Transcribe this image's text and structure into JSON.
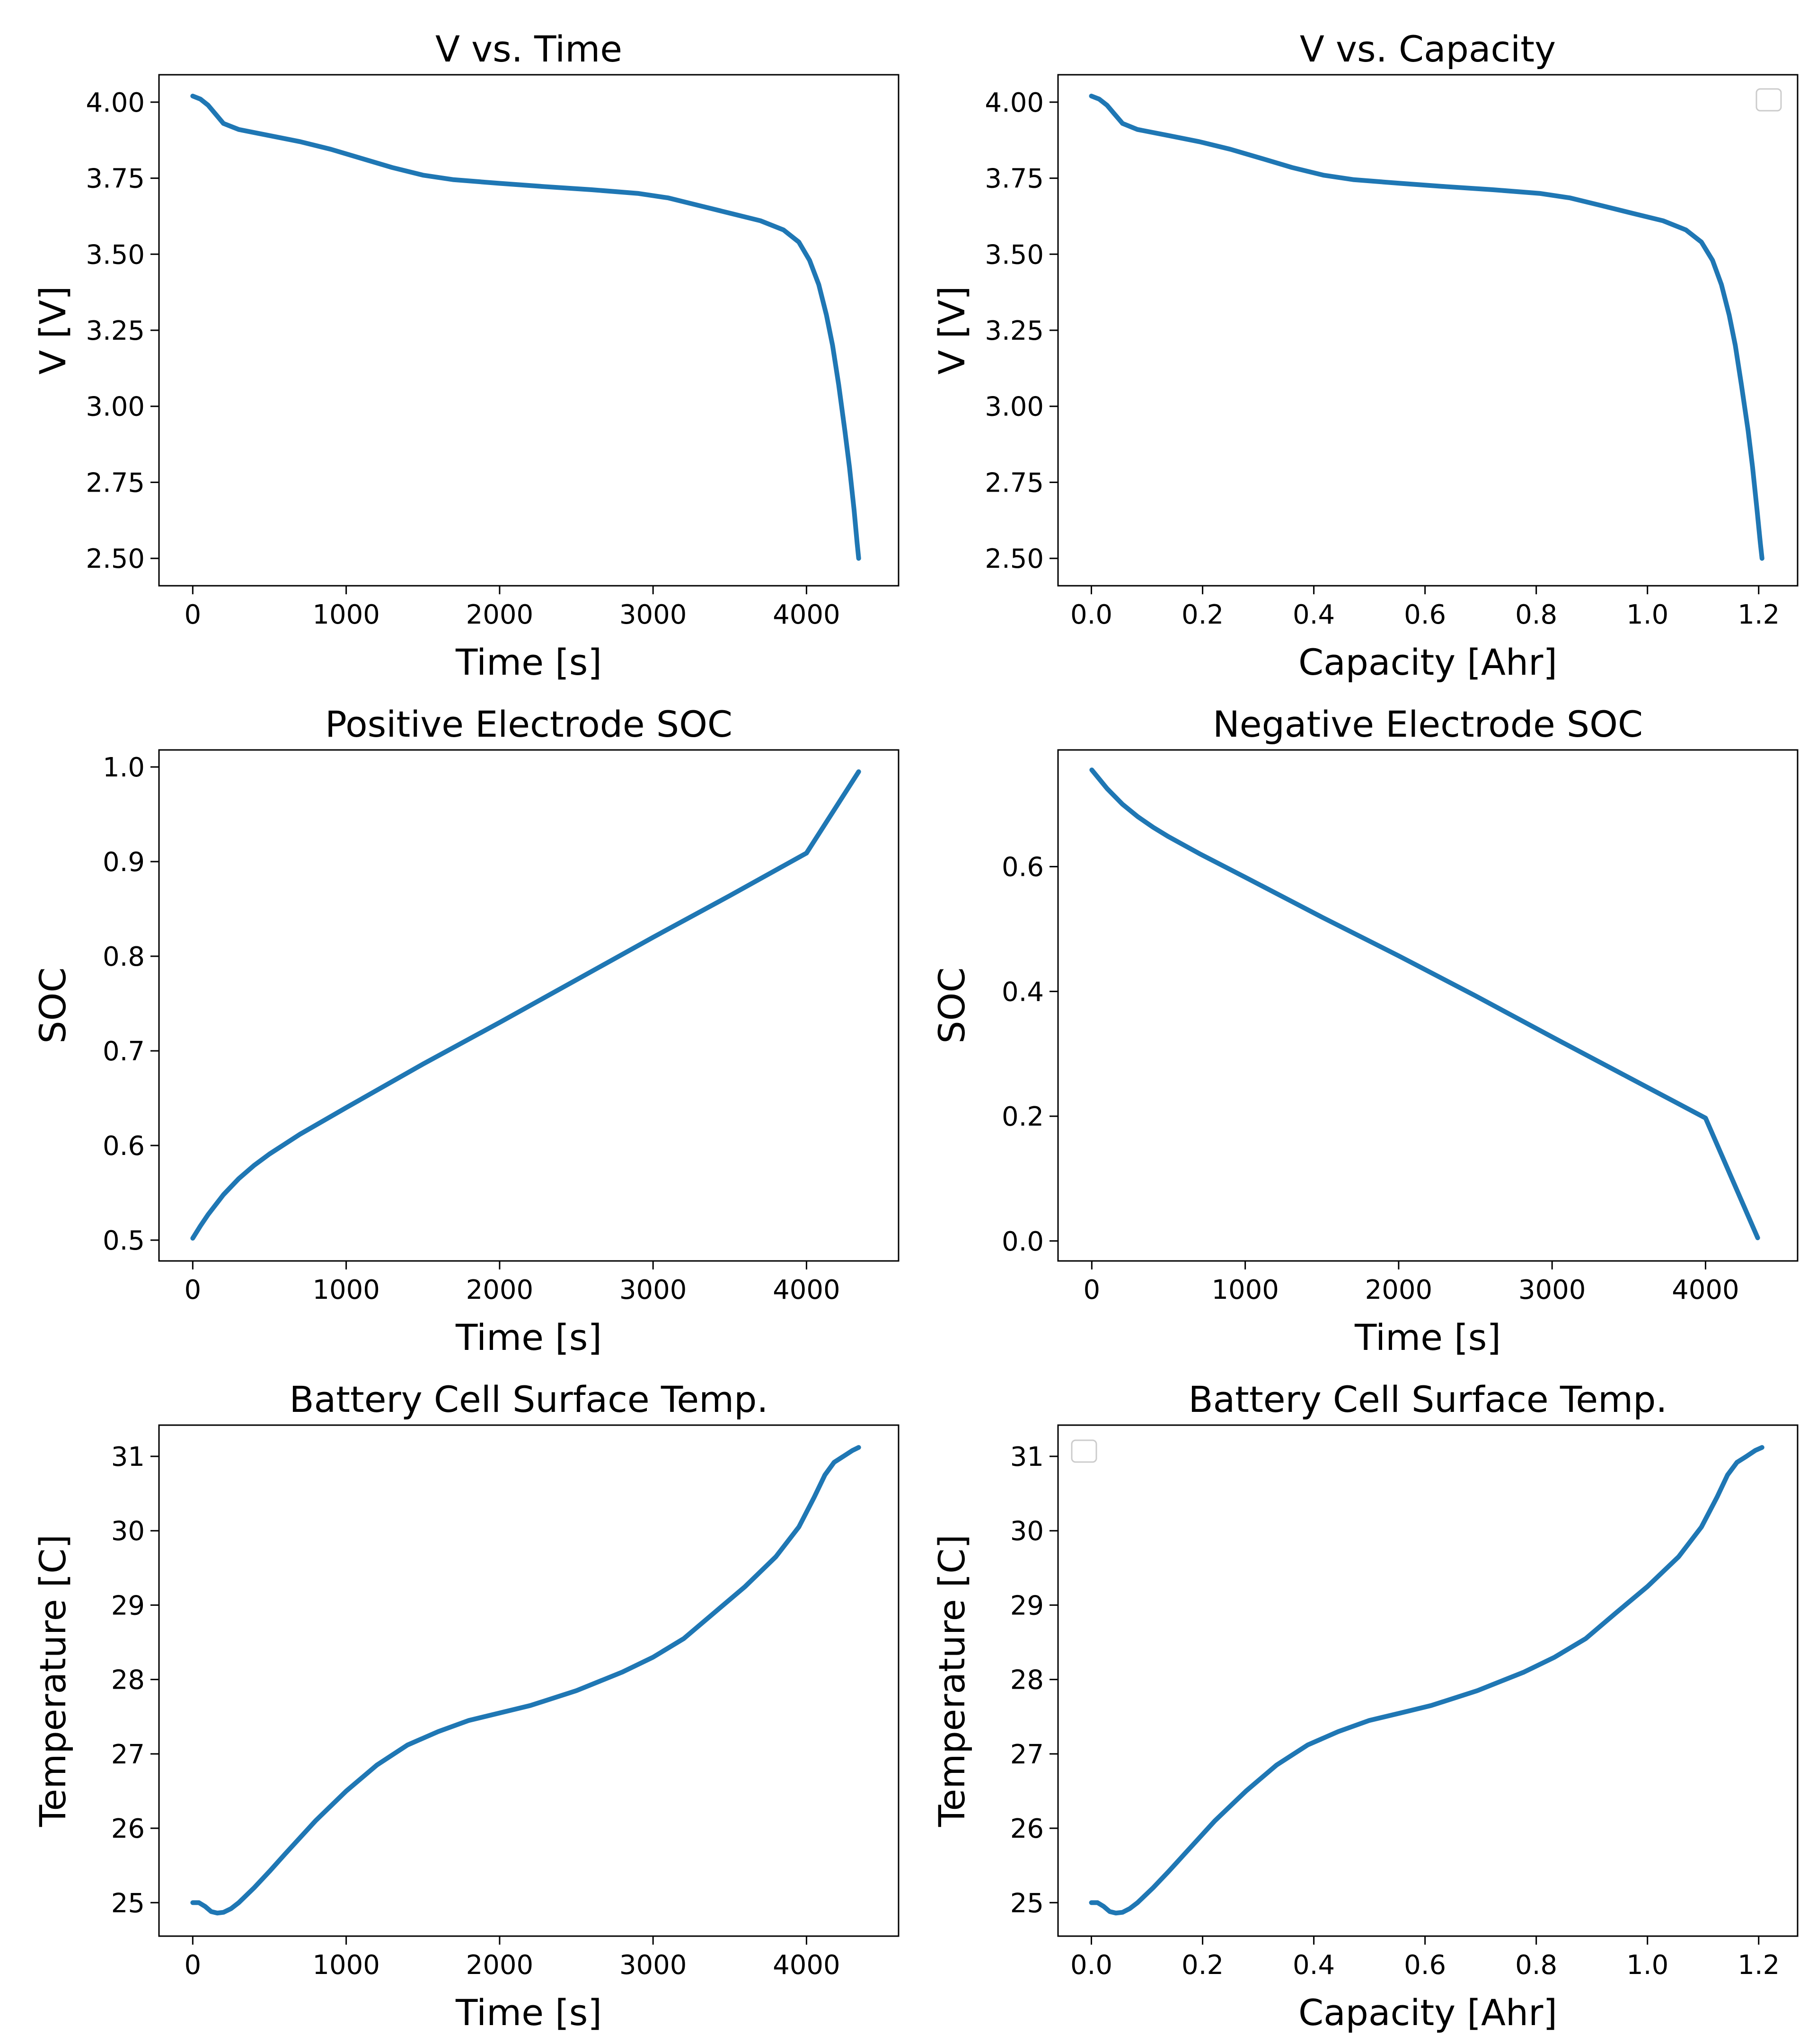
{
  "figure": {
    "line_color": "#1f77b4"
  },
  "chart_data": [
    {
      "id": "v-vs-time",
      "type": "line",
      "title": "V vs. Time",
      "xlabel": "Time [s]",
      "ylabel": "V [V]",
      "xlim": [
        -220,
        4600
      ],
      "ylim": [
        2.41,
        4.09
      ],
      "xticks": [
        0,
        1000,
        2000,
        3000,
        4000
      ],
      "xtick_labels": [
        "0",
        "1000",
        "2000",
        "3000",
        "4000"
      ],
      "yticks": [
        2.5,
        2.75,
        3.0,
        3.25,
        3.5,
        3.75,
        4.0
      ],
      "ytick_labels": [
        "2.50",
        "2.75",
        "3.00",
        "3.25",
        "3.50",
        "3.75",
        "4.00"
      ],
      "legend": "none",
      "grid": false,
      "series": [
        {
          "x": [
            0,
            50,
            100,
            150,
            200,
            300,
            500,
            700,
            900,
            1100,
            1300,
            1500,
            1700,
            2000,
            2300,
            2600,
            2900,
            3100,
            3300,
            3500,
            3700,
            3850,
            3950,
            4020,
            4080,
            4130,
            4170,
            4210,
            4250,
            4280,
            4310,
            4330,
            4340
          ],
          "y": [
            4.02,
            4.01,
            3.99,
            3.96,
            3.93,
            3.91,
            3.89,
            3.87,
            3.845,
            3.815,
            3.785,
            3.76,
            3.745,
            3.733,
            3.722,
            3.712,
            3.7,
            3.685,
            3.66,
            3.635,
            3.61,
            3.58,
            3.54,
            3.48,
            3.4,
            3.3,
            3.2,
            3.07,
            2.92,
            2.8,
            2.66,
            2.55,
            2.5
          ]
        }
      ]
    },
    {
      "id": "v-vs-capacity",
      "type": "line",
      "title": "V vs. Capacity",
      "xlabel": "Capacity [Ahr]",
      "ylabel": "V [V]",
      "xlim": [
        -0.06,
        1.27
      ],
      "ylim": [
        2.41,
        4.09
      ],
      "xticks": [
        0,
        0.2,
        0.4,
        0.6,
        0.8,
        1.0,
        1.2
      ],
      "xtick_labels": [
        "0.0",
        "0.2",
        "0.4",
        "0.6",
        "0.8",
        "1.0",
        "1.2"
      ],
      "yticks": [
        2.5,
        2.75,
        3.0,
        3.25,
        3.5,
        3.75,
        4.0
      ],
      "ytick_labels": [
        "2.50",
        "2.75",
        "3.00",
        "3.25",
        "3.50",
        "3.75",
        "4.00"
      ],
      "legend": "upper right (empty)",
      "grid": false,
      "series": [
        {
          "x": [
            0,
            0.014,
            0.028,
            0.042,
            0.056,
            0.083,
            0.139,
            0.194,
            0.25,
            0.306,
            0.361,
            0.417,
            0.472,
            0.556,
            0.639,
            0.722,
            0.806,
            0.861,
            0.917,
            0.972,
            1.028,
            1.069,
            1.097,
            1.117,
            1.133,
            1.147,
            1.158,
            1.169,
            1.181,
            1.189,
            1.197,
            1.203,
            1.206
          ],
          "y": [
            4.02,
            4.01,
            3.99,
            3.96,
            3.93,
            3.91,
            3.89,
            3.87,
            3.845,
            3.815,
            3.785,
            3.76,
            3.745,
            3.733,
            3.722,
            3.712,
            3.7,
            3.685,
            3.66,
            3.635,
            3.61,
            3.58,
            3.54,
            3.48,
            3.4,
            3.3,
            3.2,
            3.07,
            2.92,
            2.8,
            2.66,
            2.55,
            2.5
          ]
        }
      ]
    },
    {
      "id": "positive-electrode-soc",
      "type": "line",
      "title": "Positive Electrode SOC",
      "xlabel": "Time [s]",
      "ylabel": "SOC",
      "xlim": [
        -220,
        4600
      ],
      "ylim": [
        0.478,
        1.018
      ],
      "xticks": [
        0,
        1000,
        2000,
        3000,
        4000
      ],
      "xtick_labels": [
        "0",
        "1000",
        "2000",
        "3000",
        "4000"
      ],
      "yticks": [
        0.5,
        0.6,
        0.7,
        0.8,
        0.9,
        1.0
      ],
      "ytick_labels": [
        "0.5",
        "0.6",
        "0.7",
        "0.8",
        "0.9",
        "1.0"
      ],
      "legend": "none",
      "grid": false,
      "series": [
        {
          "x": [
            0,
            50,
            100,
            200,
            300,
            400,
            500,
            700,
            1000,
            1500,
            2000,
            2500,
            3000,
            3500,
            4000,
            4340
          ],
          "y": [
            0.502,
            0.515,
            0.527,
            0.548,
            0.565,
            0.579,
            0.591,
            0.612,
            0.64,
            0.686,
            0.73,
            0.775,
            0.82,
            0.864,
            0.909,
            0.995
          ]
        }
      ]
    },
    {
      "id": "negative-electrode-soc",
      "type": "line",
      "title": "Negative Electrode SOC",
      "xlabel": "Time [s]",
      "ylabel": "SOC",
      "xlim": [
        -220,
        4600
      ],
      "ylim": [
        -0.032,
        0.787
      ],
      "xticks": [
        0,
        1000,
        2000,
        3000,
        4000
      ],
      "xtick_labels": [
        "0",
        "1000",
        "2000",
        "3000",
        "4000"
      ],
      "yticks": [
        0.0,
        0.2,
        0.4,
        0.6
      ],
      "ytick_labels": [
        "0.0",
        "0.2",
        "0.4",
        "0.6"
      ],
      "legend": "none",
      "grid": false,
      "series": [
        {
          "x": [
            0,
            50,
            100,
            200,
            300,
            400,
            500,
            700,
            1000,
            1500,
            2000,
            2500,
            3000,
            3500,
            4000,
            4340
          ],
          "y": [
            0.755,
            0.74,
            0.725,
            0.7,
            0.68,
            0.663,
            0.648,
            0.621,
            0.583,
            0.519,
            0.457,
            0.393,
            0.327,
            0.262,
            0.197,
            0.005
          ]
        }
      ]
    },
    {
      "id": "surface-temp-vs-time",
      "type": "line",
      "title": "Battery Cell Surface Temp.",
      "xlabel": "Time [s]",
      "ylabel": "Temperature [C]",
      "xlim": [
        -220,
        4600
      ],
      "ylim": [
        24.55,
        31.42
      ],
      "xticks": [
        0,
        1000,
        2000,
        3000,
        4000
      ],
      "xtick_labels": [
        "0",
        "1000",
        "2000",
        "3000",
        "4000"
      ],
      "yticks": [
        25,
        26,
        27,
        28,
        29,
        30,
        31
      ],
      "ytick_labels": [
        "25",
        "26",
        "27",
        "28",
        "29",
        "30",
        "31"
      ],
      "legend": "none",
      "grid": false,
      "series": [
        {
          "x": [
            0,
            40,
            80,
            120,
            160,
            200,
            250,
            300,
            400,
            500,
            600,
            800,
            1000,
            1200,
            1400,
            1600,
            1800,
            2000,
            2200,
            2500,
            2800,
            3000,
            3200,
            3400,
            3600,
            3800,
            3950,
            4050,
            4120,
            4180,
            4240,
            4300,
            4340
          ],
          "y": [
            25.0,
            25.0,
            24.95,
            24.88,
            24.86,
            24.87,
            24.92,
            25.0,
            25.2,
            25.42,
            25.65,
            26.1,
            26.5,
            26.85,
            27.12,
            27.3,
            27.45,
            27.55,
            27.65,
            27.85,
            28.1,
            28.3,
            28.55,
            28.9,
            29.25,
            29.65,
            30.05,
            30.45,
            30.75,
            30.92,
            31.0,
            31.08,
            31.12
          ]
        }
      ]
    },
    {
      "id": "surface-temp-vs-capacity",
      "type": "line",
      "title": "Battery Cell Surface Temp.",
      "xlabel": "Capacity [Ahr]",
      "ylabel": "Temperature [C]",
      "xlim": [
        -0.06,
        1.27
      ],
      "ylim": [
        24.55,
        31.42
      ],
      "xticks": [
        0,
        0.2,
        0.4,
        0.6,
        0.8,
        1.0,
        1.2
      ],
      "xtick_labels": [
        "0.0",
        "0.2",
        "0.4",
        "0.6",
        "0.8",
        "1.0",
        "1.2"
      ],
      "yticks": [
        25,
        26,
        27,
        28,
        29,
        30,
        31
      ],
      "ytick_labels": [
        "25",
        "26",
        "27",
        "28",
        "29",
        "30",
        "31"
      ],
      "legend": "upper left (empty)",
      "grid": false,
      "series": [
        {
          "x": [
            0,
            0.011,
            0.022,
            0.033,
            0.044,
            0.056,
            0.069,
            0.083,
            0.111,
            0.139,
            0.167,
            0.222,
            0.278,
            0.333,
            0.389,
            0.444,
            0.5,
            0.556,
            0.611,
            0.694,
            0.778,
            0.833,
            0.889,
            0.944,
            1.0,
            1.056,
            1.097,
            1.125,
            1.144,
            1.161,
            1.178,
            1.194,
            1.206
          ],
          "y": [
            25.0,
            25.0,
            24.95,
            24.88,
            24.86,
            24.87,
            24.92,
            25.0,
            25.2,
            25.42,
            25.65,
            26.1,
            26.5,
            26.85,
            27.12,
            27.3,
            27.45,
            27.55,
            27.65,
            27.85,
            28.1,
            28.3,
            28.55,
            28.9,
            29.25,
            29.65,
            30.05,
            30.45,
            30.75,
            30.92,
            31.0,
            31.08,
            31.12
          ]
        }
      ]
    }
  ]
}
